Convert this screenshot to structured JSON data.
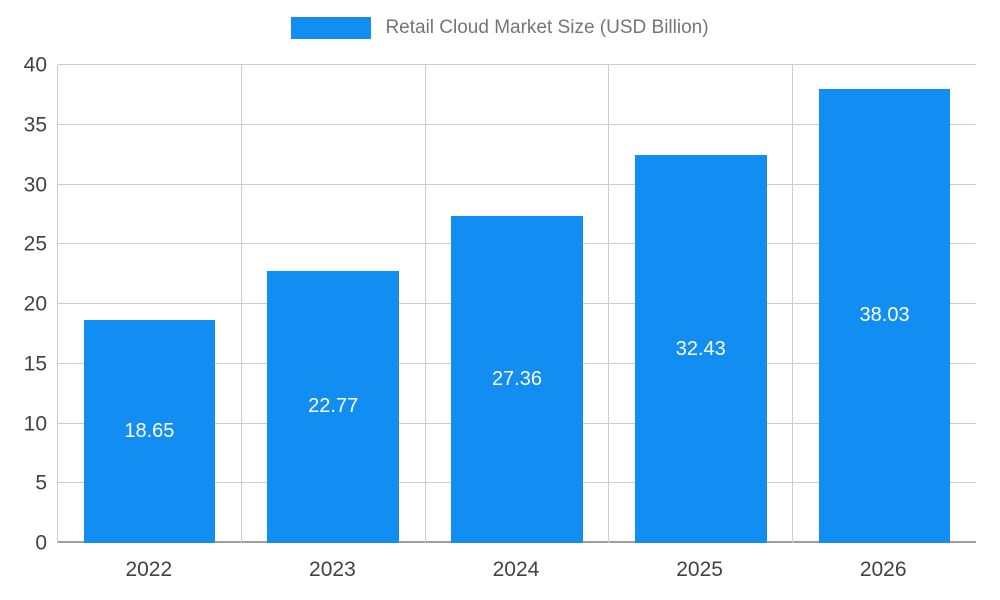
{
  "chart_data": {
    "type": "bar",
    "title": "Retail Cloud Market Size (USD Billion)",
    "categories": [
      "2022",
      "2023",
      "2024",
      "2025",
      "2026"
    ],
    "series": [
      {
        "name": "Retail Cloud Market Size (USD Billion)",
        "values": [
          18.65,
          22.77,
          27.36,
          32.43,
          38.03
        ]
      }
    ],
    "value_labels": [
      "18.65",
      "22.77",
      "27.36",
      "32.43",
      "38.03"
    ],
    "xlabel": "",
    "ylabel": "",
    "ylim": [
      0,
      40
    ],
    "ytick_step": 5,
    "grid": true,
    "legend_position": "top",
    "colors": {
      "bar": "#128df2",
      "bar_value_text": "#ffffff",
      "gridline": "#cccccc",
      "axis_line": "#9e9e9e",
      "tick_text": "#424242",
      "legend_text": "#757575",
      "background": "#ffffff"
    }
  }
}
